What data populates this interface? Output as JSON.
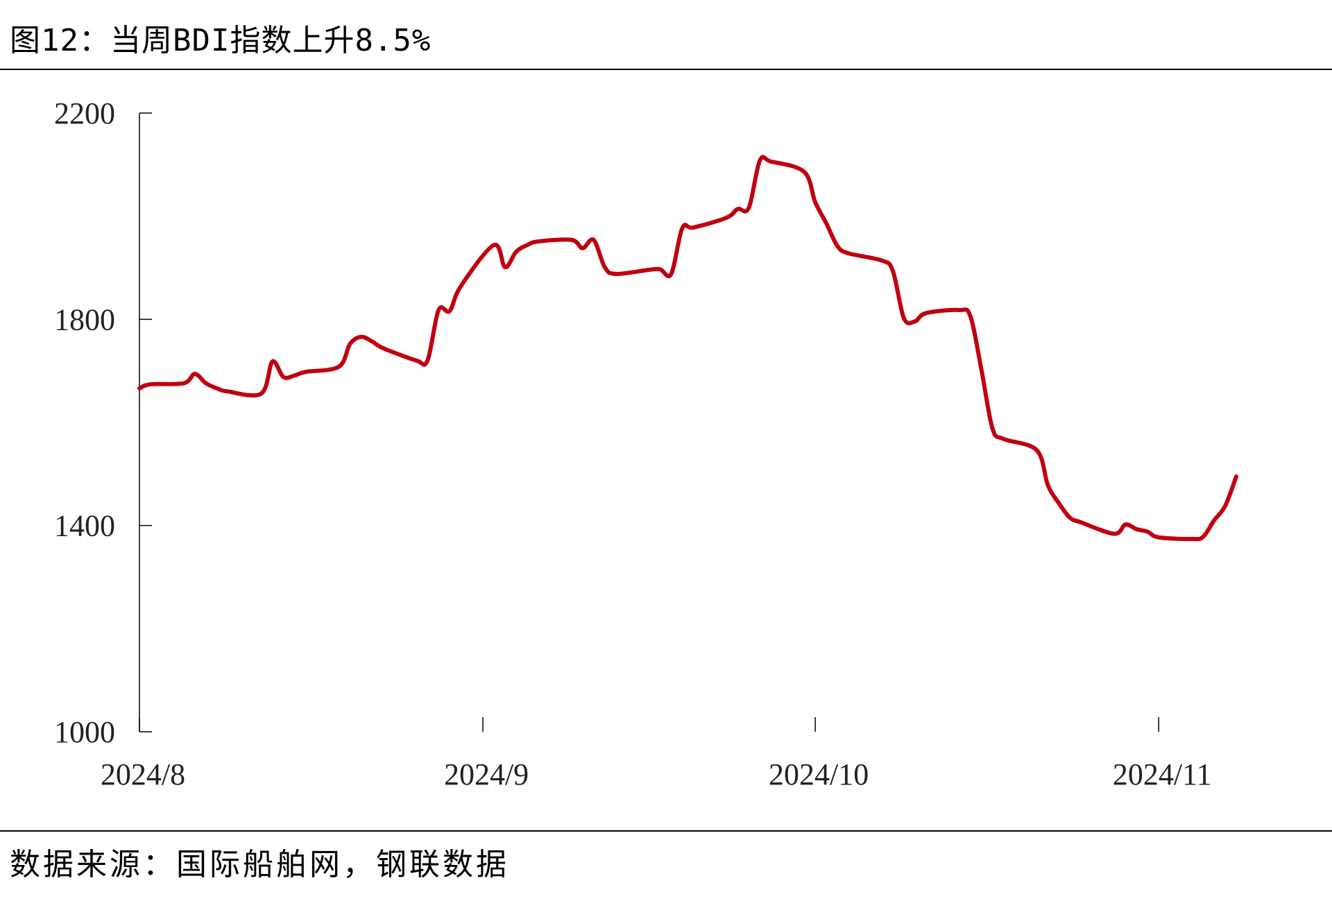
{
  "title": "图12：当周BDI指数上升8.5%",
  "source": "数据来源：国际船舶网，钢联数据",
  "colors": {
    "line": "#C0000F",
    "axis": "#000000"
  },
  "chart_data": {
    "type": "line",
    "title": "",
    "xlabel": "",
    "ylabel": "",
    "ylim": [
      1000,
      2200
    ],
    "yticks": [
      1000,
      1400,
      1800,
      2200
    ],
    "xlim": [
      "2024-08-01",
      "2024-11-08"
    ],
    "xtick_dates": [
      "2024-08-01",
      "2024-09-01",
      "2024-10-01",
      "2024-11-01"
    ],
    "xtick_labels": [
      "2024/8",
      "2024/9",
      "2024/10",
      "2024/11"
    ],
    "grid": false,
    "legend": "none",
    "series": [
      {
        "x": [
          "2024-08-01",
          "2024-08-02",
          "2024-08-05",
          "2024-08-06",
          "2024-08-07",
          "2024-08-08",
          "2024-08-09",
          "2024-08-12",
          "2024-08-13",
          "2024-08-14",
          "2024-08-15",
          "2024-08-16",
          "2024-08-19",
          "2024-08-20",
          "2024-08-21",
          "2024-08-22",
          "2024-08-23",
          "2024-08-26",
          "2024-08-27",
          "2024-08-28",
          "2024-08-29",
          "2024-08-30",
          "2024-09-02",
          "2024-09-03",
          "2024-09-04",
          "2024-09-05",
          "2024-09-06",
          "2024-09-09",
          "2024-09-10",
          "2024-09-11",
          "2024-09-12",
          "2024-09-13",
          "2024-09-16",
          "2024-09-17",
          "2024-09-18",
          "2024-09-19",
          "2024-09-20",
          "2024-09-23",
          "2024-09-24",
          "2024-09-25",
          "2024-09-26",
          "2024-09-27",
          "2024-09-30",
          "2024-10-01",
          "2024-10-02",
          "2024-10-03",
          "2024-10-04",
          "2024-10-07",
          "2024-10-08",
          "2024-10-09",
          "2024-10-10",
          "2024-10-11",
          "2024-10-14",
          "2024-10-15",
          "2024-10-16",
          "2024-10-17",
          "2024-10-18",
          "2024-10-21",
          "2024-10-22",
          "2024-10-23",
          "2024-10-24",
          "2024-10-25",
          "2024-10-28",
          "2024-10-29",
          "2024-10-30",
          "2024-10-31",
          "2024-11-01",
          "2024-11-04",
          "2024-11-05",
          "2024-11-06",
          "2024-11-07",
          "2024-11-08"
        ],
        "values": [
          1666,
          1674,
          1676,
          1694,
          1676,
          1666,
          1660,
          1656,
          1718,
          1688,
          1691,
          1698,
          1708,
          1752,
          1766,
          1757,
          1744,
          1720,
          1720,
          1818,
          1816,
          1864,
          1944,
          1901,
          1931,
          1944,
          1951,
          1954,
          1938,
          1954,
          1901,
          1888,
          1896,
          1897,
          1888,
          1977,
          1978,
          1997,
          2014,
          2016,
          2108,
          2106,
          2086,
          2027,
          1986,
          1942,
          1928,
          1914,
          1894,
          1802,
          1796,
          1812,
          1818,
          1806,
          1702,
          1588,
          1568,
          1546,
          1478,
          1443,
          1415,
          1406,
          1384,
          1402,
          1393,
          1388,
          1377,
          1374,
          1378,
          1410,
          1438,
          1495
        ]
      }
    ]
  }
}
